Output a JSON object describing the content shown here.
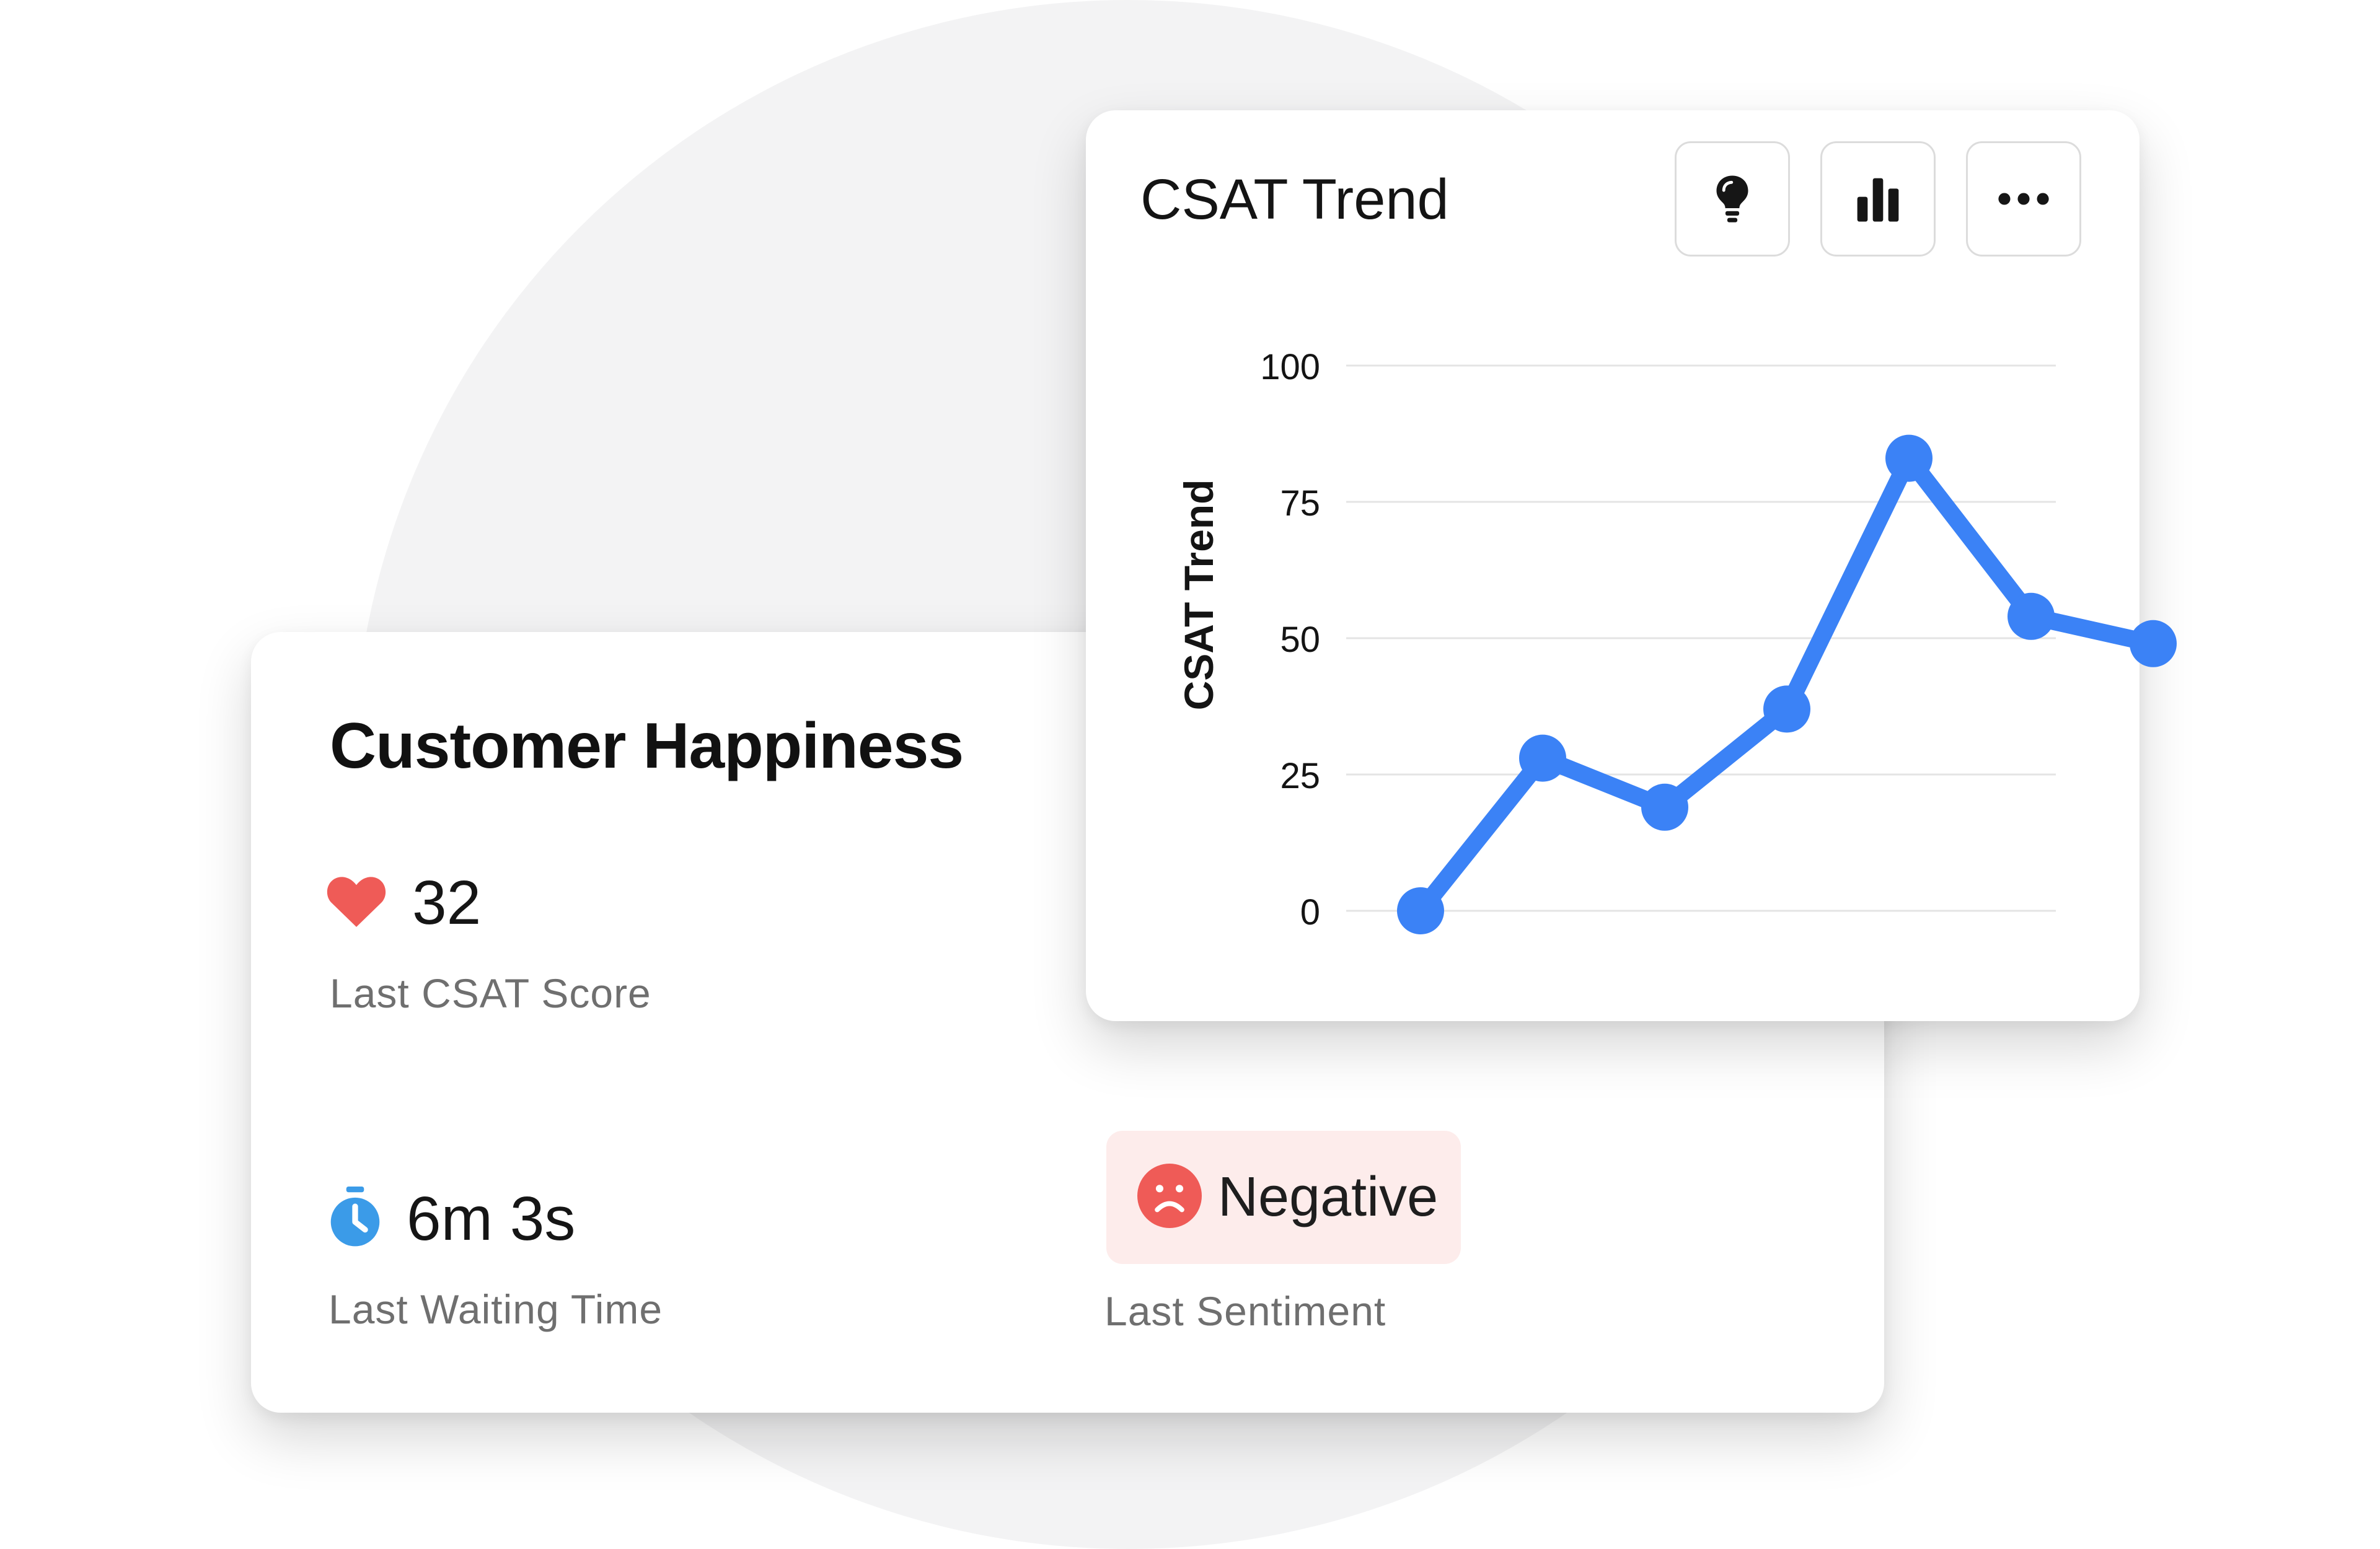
{
  "colors": {
    "line": "#3b82f6",
    "heart": "#ef5b57",
    "timer": "#3b9be8",
    "sad_face": "#ef5b57",
    "badge_bg": "#fdeceb"
  },
  "happiness": {
    "title": "Customer Happiness",
    "csat_score": "32",
    "csat_label": "Last CSAT Score",
    "csat_icon": "heart-icon",
    "waiting_time": "6m 3s",
    "waiting_label": "Last Waiting Time",
    "waiting_icon": "stopwatch-icon",
    "sentiment": "Negative",
    "sentiment_label": "Last Sentiment",
    "sentiment_icon": "sad-face-icon"
  },
  "trend": {
    "title": "CSAT Trend",
    "buttons": [
      {
        "name": "insights",
        "icon": "lightbulb-icon"
      },
      {
        "name": "chart-type",
        "icon": "bar-chart-icon"
      },
      {
        "name": "more",
        "icon": "more-icon"
      }
    ]
  },
  "chart_data": {
    "type": "line",
    "title": "",
    "ylabel": "CSAT Trend",
    "xlabel": "",
    "ylim": [
      0,
      100
    ],
    "yticks": [
      "0",
      "25",
      "50",
      "75",
      "100"
    ],
    "grid": true,
    "series": [
      {
        "values": [
          0,
          28,
          19,
          37,
          83,
          54,
          49
        ]
      }
    ]
  }
}
